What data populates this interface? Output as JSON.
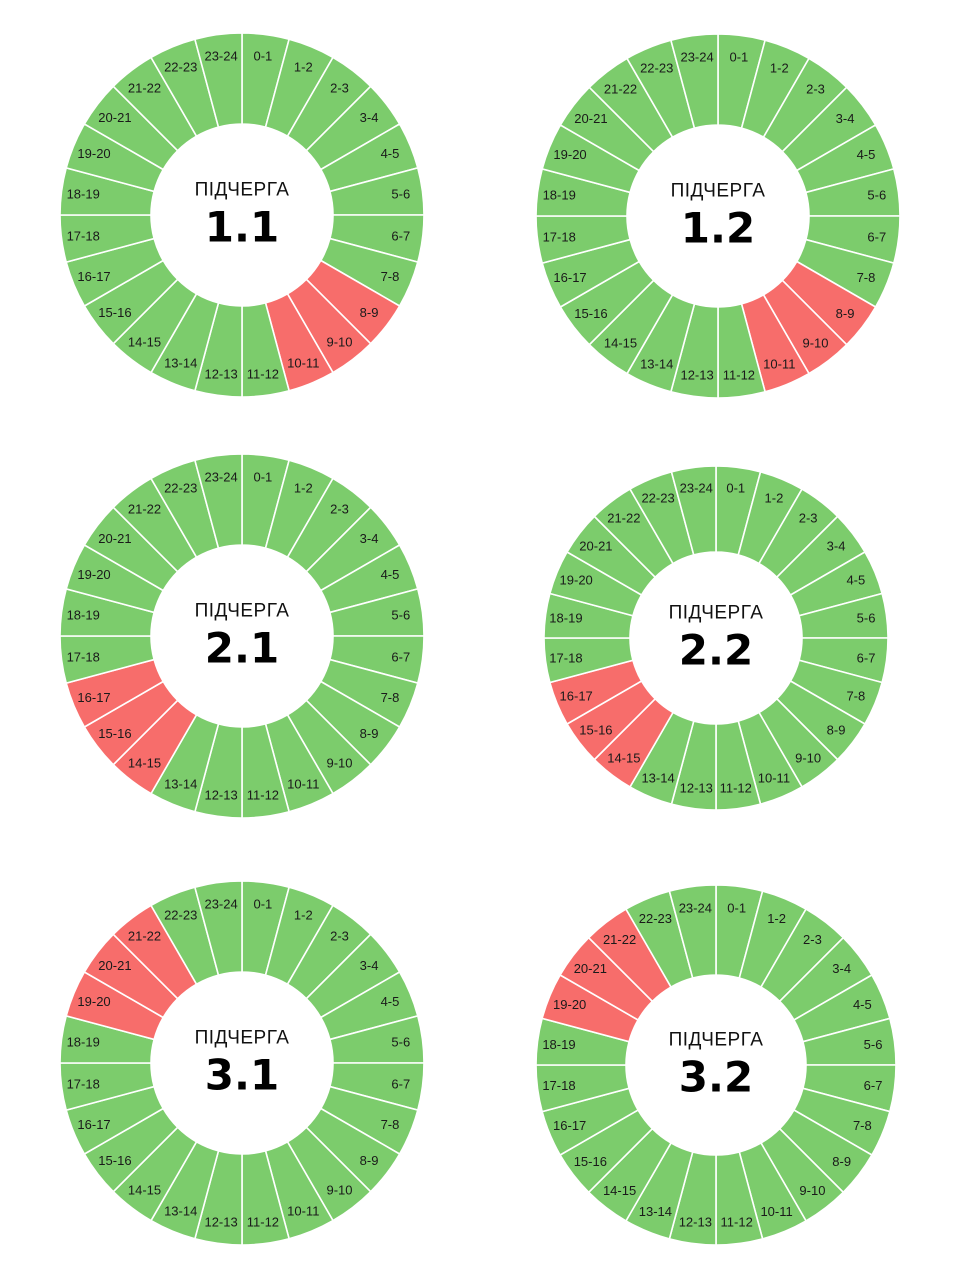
{
  "colors": {
    "power_on": "#7ccc6c",
    "power_off": "#f76d6b",
    "separator": "#ffffff"
  },
  "chart_data": [
    {
      "type": "pie",
      "subtitle": "ПІДЧЕРГА",
      "title": "1.1",
      "categories": [
        "0-1",
        "1-2",
        "2-3",
        "3-4",
        "4-5",
        "5-6",
        "6-7",
        "7-8",
        "8-9",
        "9-10",
        "10-11",
        "11-12",
        "12-13",
        "13-14",
        "14-15",
        "15-16",
        "16-17",
        "17-18",
        "18-19",
        "19-20",
        "20-21",
        "21-22",
        "22-23",
        "23-24"
      ],
      "outage": [
        "8-9",
        "9-10",
        "10-11"
      ]
    },
    {
      "type": "pie",
      "subtitle": "ПІДЧЕРГА",
      "title": "1.2",
      "categories": [
        "0-1",
        "1-2",
        "2-3",
        "3-4",
        "4-5",
        "5-6",
        "6-7",
        "7-8",
        "8-9",
        "9-10",
        "10-11",
        "11-12",
        "12-13",
        "13-14",
        "14-15",
        "15-16",
        "16-17",
        "17-18",
        "18-19",
        "19-20",
        "20-21",
        "21-22",
        "22-23",
        "23-24"
      ],
      "outage": [
        "8-9",
        "9-10",
        "10-11"
      ]
    },
    {
      "type": "pie",
      "subtitle": "ПІДЧЕРГА",
      "title": "2.1",
      "categories": [
        "0-1",
        "1-2",
        "2-3",
        "3-4",
        "4-5",
        "5-6",
        "6-7",
        "7-8",
        "8-9",
        "9-10",
        "10-11",
        "11-12",
        "12-13",
        "13-14",
        "14-15",
        "15-16",
        "16-17",
        "17-18",
        "18-19",
        "19-20",
        "20-21",
        "21-22",
        "22-23",
        "23-24"
      ],
      "outage": [
        "14-15",
        "15-16",
        "16-17"
      ]
    },
    {
      "type": "pie",
      "subtitle": "ПІДЧЕРГА",
      "title": "2.2",
      "categories": [
        "0-1",
        "1-2",
        "2-3",
        "3-4",
        "4-5",
        "5-6",
        "6-7",
        "7-8",
        "8-9",
        "9-10",
        "10-11",
        "11-12",
        "12-13",
        "13-14",
        "14-15",
        "15-16",
        "16-17",
        "17-18",
        "18-19",
        "19-20",
        "20-21",
        "21-22",
        "22-23",
        "23-24"
      ],
      "outage": [
        "14-15",
        "15-16",
        "16-17"
      ]
    },
    {
      "type": "pie",
      "subtitle": "ПІДЧЕРГА",
      "title": "3.1",
      "categories": [
        "0-1",
        "1-2",
        "2-3",
        "3-4",
        "4-5",
        "5-6",
        "6-7",
        "7-8",
        "8-9",
        "9-10",
        "10-11",
        "11-12",
        "12-13",
        "13-14",
        "14-15",
        "15-16",
        "16-17",
        "17-18",
        "18-19",
        "19-20",
        "20-21",
        "21-22",
        "22-23",
        "23-24"
      ],
      "outage": [
        "19-20",
        "20-21",
        "21-22"
      ]
    },
    {
      "type": "pie",
      "subtitle": "ПІДЧЕРГА",
      "title": "3.2",
      "categories": [
        "0-1",
        "1-2",
        "2-3",
        "3-4",
        "4-5",
        "5-6",
        "6-7",
        "7-8",
        "8-9",
        "9-10",
        "10-11",
        "11-12",
        "12-13",
        "13-14",
        "14-15",
        "15-16",
        "16-17",
        "17-18",
        "18-19",
        "19-20",
        "20-21",
        "21-22",
        "22-23",
        "23-24"
      ],
      "outage": [
        "19-20",
        "20-21",
        "21-22"
      ]
    }
  ]
}
